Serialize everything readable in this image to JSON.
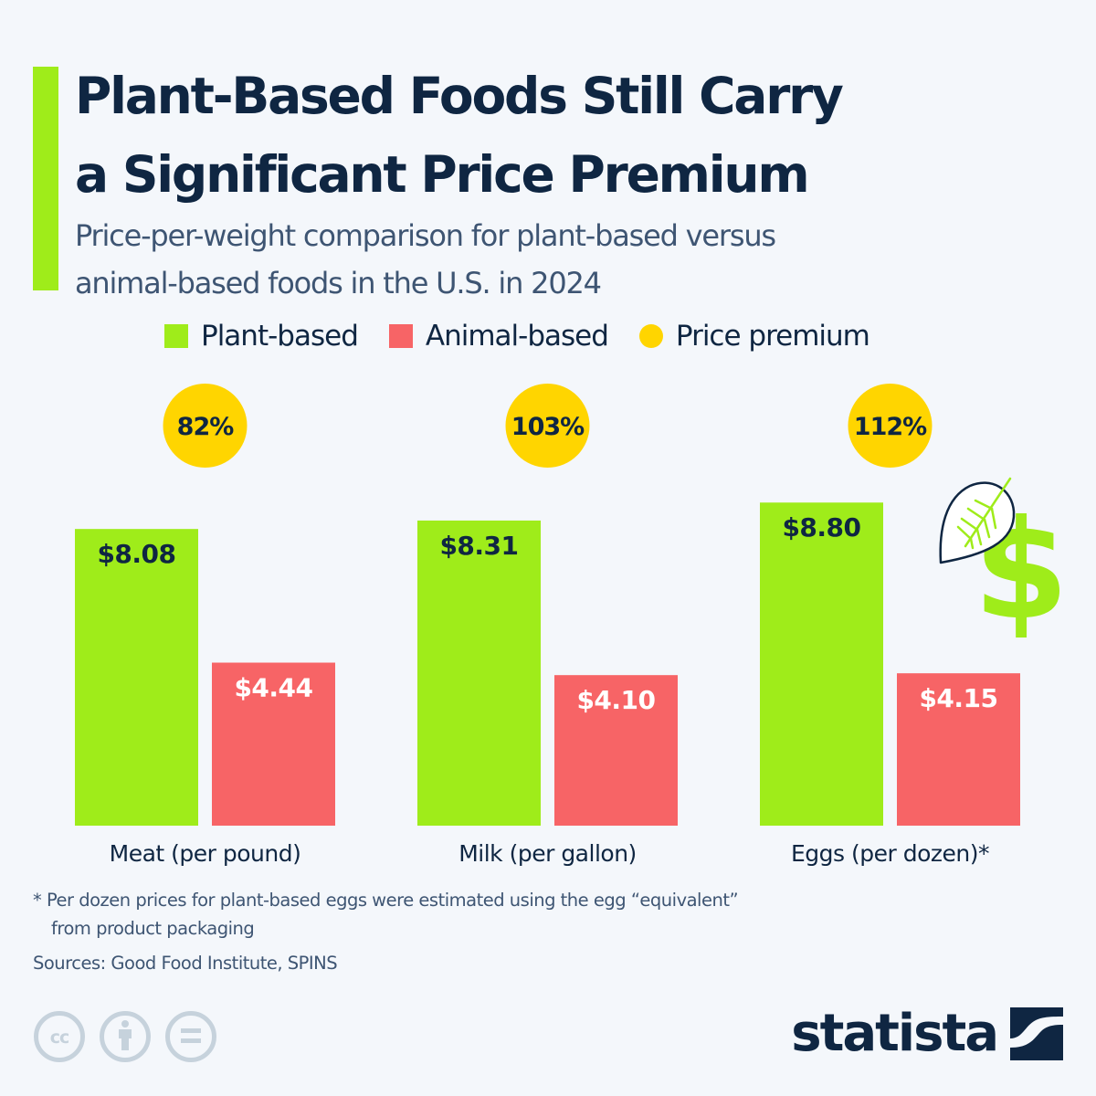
{
  "header": {
    "title_line1": "Plant-Based Foods Still Carry",
    "title_line2": "a Significant Price Premium",
    "subtitle_line1": "Price-per-weight comparison for plant-based versus",
    "subtitle_line2": "animal-based foods in the U.S. in 2024"
  },
  "colors": {
    "plant": "#9fec1a",
    "animal": "#f76466",
    "premium": "#ffd500",
    "text_dark": "#0f2642",
    "text_muted": "#3e5573",
    "background": "#f4f7fb",
    "license_icon": "#c6d2dc"
  },
  "legend": [
    {
      "label": "Plant-based",
      "shape": "square",
      "color": "#9fec1a"
    },
    {
      "label": "Animal-based",
      "shape": "square",
      "color": "#f76466"
    },
    {
      "label": "Price premium",
      "shape": "circle",
      "color": "#ffd500"
    }
  ],
  "chart_data": {
    "type": "bar",
    "title": "Plant-Based Foods Still Carry a Significant Price Premium",
    "subtitle": "Price-per-weight comparison for plant-based versus animal-based foods in the U.S. in 2024",
    "xlabel": "",
    "ylabel": "",
    "grid": false,
    "legend_position": "top",
    "ylim": [
      0,
      9.5
    ],
    "categories": [
      "Meat (per pound)",
      "Milk (per gallon)",
      "Eggs (per dozen)*"
    ],
    "series": [
      {
        "name": "Plant-based",
        "color": "#9fec1a",
        "values": [
          8.08,
          8.31,
          8.8
        ],
        "labels": [
          "$8.08",
          "$8.31",
          "$8.80"
        ]
      },
      {
        "name": "Animal-based",
        "color": "#f76466",
        "values": [
          4.44,
          4.1,
          4.15
        ],
        "labels": [
          "$4.44",
          "$4.10",
          "$4.15"
        ]
      }
    ],
    "premium": {
      "name": "Price premium",
      "color": "#ffd500",
      "values": [
        82,
        103,
        112
      ],
      "labels": [
        "82%",
        "103%",
        "112%"
      ]
    }
  },
  "decorations": {
    "icons": [
      "leaf-icon",
      "dollar-icon"
    ]
  },
  "footer": {
    "footnote_line1": "* Per dozen prices for plant-based eggs were estimated using the egg “equivalent”",
    "footnote_line2": "from product packaging",
    "sources": "Sources: Good Food Institute, SPINS",
    "license_icons": [
      "cc-icon",
      "attribution-icon",
      "no-derivatives-icon"
    ],
    "brand": "statista"
  }
}
